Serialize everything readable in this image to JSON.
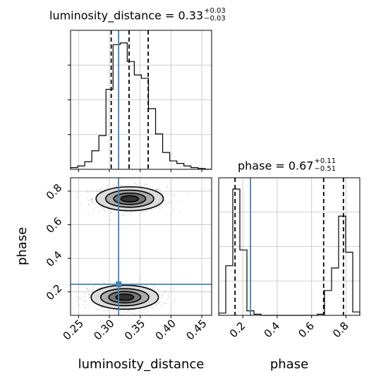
{
  "chart_data": {
    "type": "corner",
    "parameters": [
      "luminosity_distance",
      "phase"
    ],
    "truth": {
      "luminosity_distance": 0.315,
      "phase": 0.245
    },
    "colors": {
      "hist": "#000000",
      "truth": "#4682b4",
      "quantile": "#000000",
      "grid": "#c0c0c0",
      "points": "#8c8c8c"
    },
    "panels": [
      {
        "id": "luminosity_distance_hist",
        "type": "histogram",
        "title": {
          "param": "luminosity_distance",
          "median": "0.33",
          "plus": "+0.03",
          "minus": "−0.03"
        },
        "xlim": [
          0.237,
          0.466
        ],
        "quantiles": [
          0.303,
          0.332,
          0.363
        ],
        "bin_edges": [
          0.237,
          0.2485,
          0.26,
          0.2715,
          0.283,
          0.2945,
          0.306,
          0.3175,
          0.329,
          0.3405,
          0.352,
          0.3635,
          0.375,
          0.3865,
          0.398,
          0.4095,
          0.421,
          0.4325,
          0.444,
          0.4555,
          0.466
        ],
        "counts": [
          2,
          4,
          9,
          22,
          40,
          95,
          148,
          150,
          128,
          112,
          108,
          72,
          42,
          20,
          10,
          7,
          4,
          2,
          1,
          0
        ],
        "ymax": 165
      },
      {
        "id": "phase_hist",
        "type": "histogram",
        "title": {
          "param": "phase",
          "median": "0.67",
          "plus": "+0.11",
          "minus": "−0.51"
        },
        "xlim": [
          0.06,
          0.88
        ],
        "xticks": [
          0.2,
          0.4,
          0.6,
          0.8
        ],
        "xticklabels": [
          "0.2",
          "0.4",
          "0.6",
          "0.8"
        ],
        "xlabel": "phase",
        "quantiles": [
          0.155,
          0.67,
          0.785
        ],
        "bin_edges": [
          0.06,
          0.101,
          0.142,
          0.183,
          0.224,
          0.265,
          0.306,
          0.347,
          0.388,
          0.429,
          0.47,
          0.511,
          0.552,
          0.593,
          0.634,
          0.675,
          0.716,
          0.757,
          0.798,
          0.839,
          0.88
        ],
        "counts": [
          2,
          44,
          112,
          58,
          4,
          1,
          0,
          0,
          0,
          0,
          0,
          0,
          0,
          0,
          1,
          22,
          42,
          88,
          56,
          3
        ],
        "ymax": 122
      },
      {
        "id": "luminosity_distance_vs_phase",
        "type": "scatter_density",
        "xlim": [
          0.237,
          0.466
        ],
        "ylim": [
          0.06,
          0.88
        ],
        "xticks": [
          0.25,
          0.3,
          0.35,
          0.4,
          0.45
        ],
        "xticklabels": [
          "0.25",
          "0.30",
          "0.35",
          "0.40",
          "0.45"
        ],
        "yticks": [
          0.2,
          0.4,
          0.6,
          0.8
        ],
        "yticklabels": [
          "0.2",
          "0.4",
          "0.6",
          "0.8"
        ],
        "xlabel": "luminosity_distance",
        "ylabel": "phase",
        "modes": [
          {
            "x": 0.333,
            "y": 0.755,
            "sx": 0.026,
            "sy": 0.034,
            "weight": 0.5
          },
          {
            "x": 0.325,
            "y": 0.168,
            "sx": 0.026,
            "sy": 0.034,
            "weight": 0.5
          }
        ]
      }
    ]
  }
}
